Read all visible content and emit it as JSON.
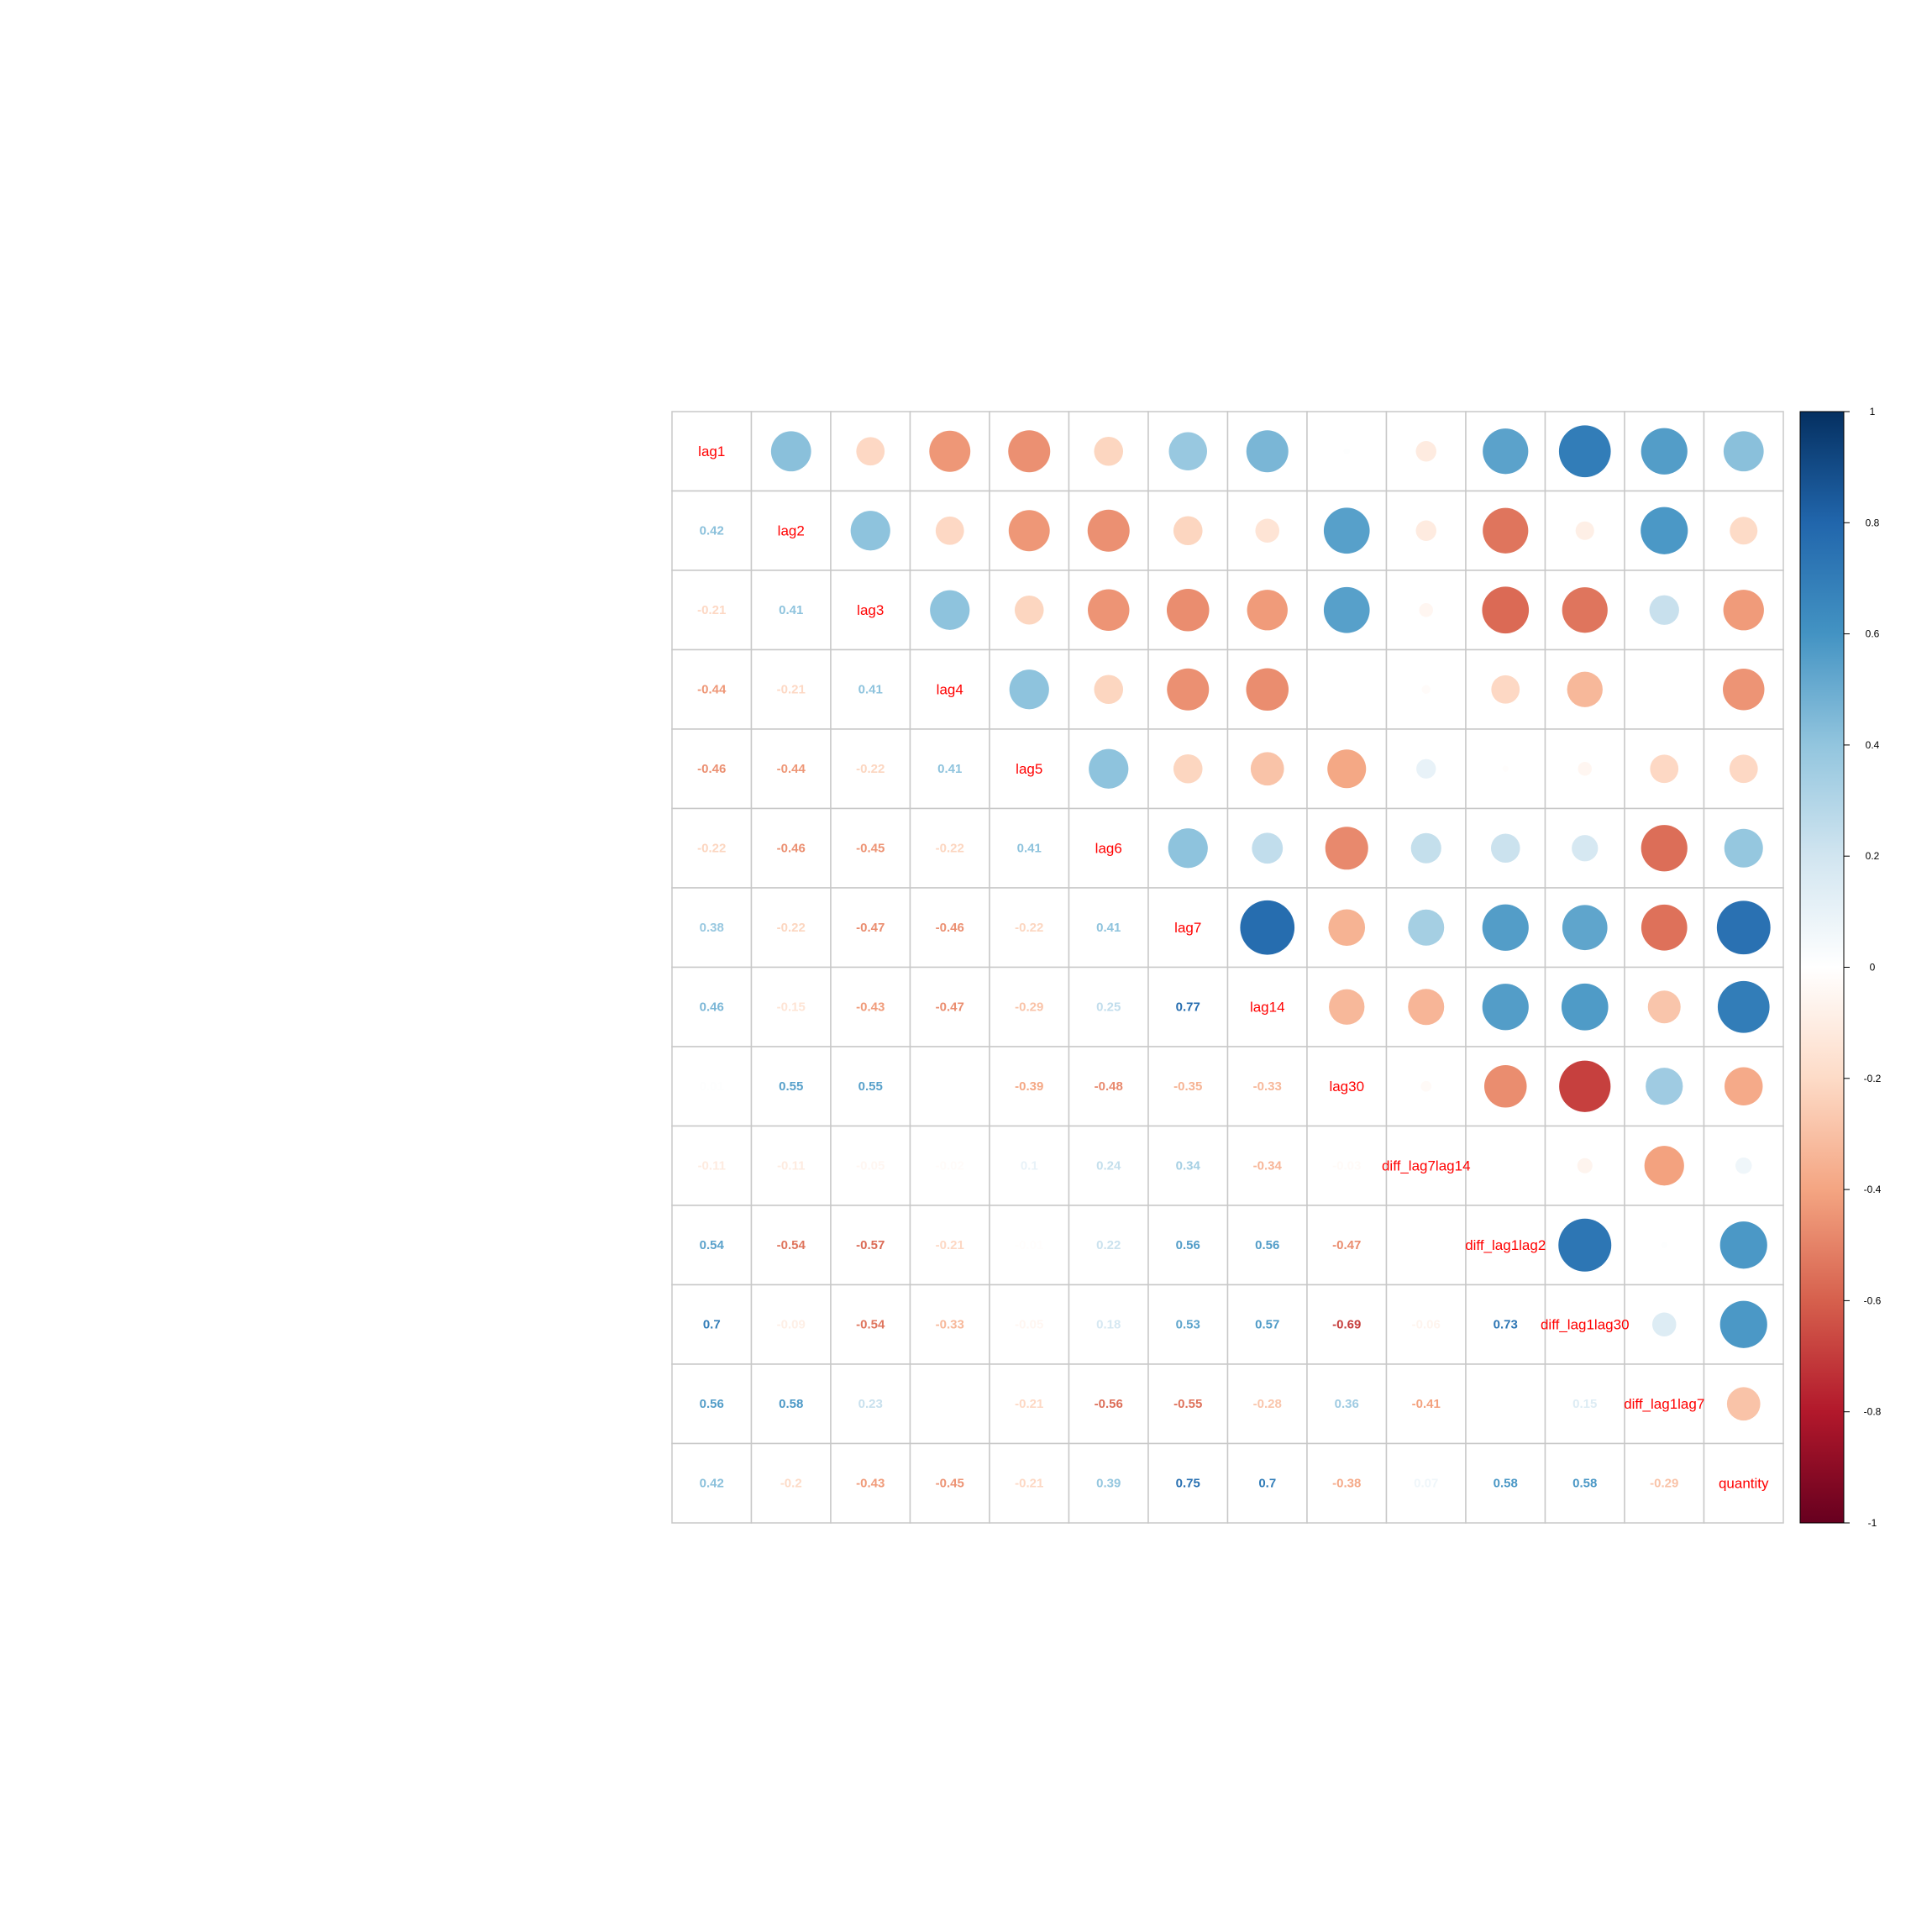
{
  "chart_data": {
    "type": "heatmap",
    "method": "circle-upper-number-lower",
    "variables": [
      "lag1",
      "lag2",
      "lag3",
      "lag4",
      "lag5",
      "lag6",
      "lag7",
      "lag14",
      "lag30",
      "diff_lag7lag14",
      "diff_lag1lag2",
      "diff_lag1lag30",
      "diff_lag1lag7",
      "quantity"
    ],
    "variable_label_color": "#ff0000",
    "matrix": [
      [
        1,
        0.42,
        -0.21,
        -0.44,
        -0.46,
        -0.22,
        0.38,
        0.46,
        0.01,
        -0.11,
        0.54,
        0.7,
        0.56,
        0.42
      ],
      [
        0.42,
        1,
        0.41,
        -0.21,
        -0.44,
        -0.46,
        -0.22,
        -0.15,
        0.55,
        -0.11,
        -0.54,
        -0.09,
        0.58,
        -0.2
      ],
      [
        -0.21,
        0.41,
        1,
        0.41,
        -0.22,
        -0.45,
        -0.47,
        -0.43,
        0.55,
        -0.05,
        -0.57,
        -0.54,
        0.23,
        -0.43
      ],
      [
        -0.44,
        -0.21,
        0.41,
        1,
        0.41,
        -0.22,
        -0.46,
        -0.47,
        0,
        -0.02,
        -0.21,
        -0.33,
        0,
        -0.45
      ],
      [
        -0.46,
        -0.44,
        -0.22,
        0.41,
        1,
        0.41,
        -0.22,
        -0.29,
        -0.39,
        0.1,
        -0.01,
        -0.05,
        -0.21,
        -0.21
      ],
      [
        -0.22,
        -0.46,
        -0.45,
        -0.22,
        0.41,
        1,
        0.41,
        0.25,
        -0.48,
        0.24,
        0.22,
        0.18,
        -0.56,
        0.39
      ],
      [
        0.38,
        -0.22,
        -0.47,
        -0.46,
        -0.22,
        0.41,
        1,
        0.77,
        -0.35,
        0.34,
        0.56,
        0.53,
        -0.55,
        0.75
      ],
      [
        0.46,
        -0.15,
        -0.43,
        -0.47,
        -0.29,
        0.25,
        0.77,
        1,
        -0.33,
        -0.34,
        0.56,
        0.57,
        -0.28,
        0.7
      ],
      [
        0.01,
        0.55,
        0.55,
        0,
        -0.39,
        -0.48,
        -0.35,
        -0.33,
        1,
        -0.03,
        -0.47,
        -0.69,
        0.36,
        -0.38
      ],
      [
        -0.11,
        -0.11,
        -0.05,
        -0.02,
        0.1,
        0.24,
        0.34,
        -0.34,
        -0.03,
        1,
        0,
        -0.06,
        -0.41,
        0.07
      ],
      [
        0.54,
        -0.54,
        -0.57,
        -0.21,
        -0.01,
        0.22,
        0.56,
        0.56,
        -0.47,
        0,
        1,
        0.73,
        0.01,
        0.58
      ],
      [
        0.7,
        -0.09,
        -0.54,
        -0.33,
        -0.05,
        0.18,
        0.53,
        0.57,
        -0.69,
        -0.06,
        0.73,
        1,
        0.15,
        0.58
      ],
      [
        0.56,
        0.58,
        0.23,
        0,
        -0.21,
        -0.56,
        -0.55,
        -0.28,
        0.36,
        -0.41,
        0.01,
        0.15,
        1,
        -0.29
      ],
      [
        0.42,
        -0.2,
        -0.43,
        -0.45,
        -0.21,
        0.39,
        0.75,
        0.7,
        -0.38,
        0.07,
        0.58,
        0.58,
        -0.29,
        1
      ]
    ],
    "hidden_labels": [
      [
        3,
        8
      ],
      [
        8,
        3
      ],
      [
        10,
        9
      ],
      [
        9,
        10
      ],
      [
        12,
        3
      ],
      [
        3,
        12
      ],
      [
        12,
        10
      ],
      [
        10,
        12
      ]
    ],
    "color_scale": {
      "range": [
        -1,
        1
      ],
      "stops": [
        "#67001f",
        "#b2182b",
        "#d6604d",
        "#f4a582",
        "#fddbc7",
        "#ffffff",
        "#d1e5f0",
        "#92c5de",
        "#4393c3",
        "#2166ac",
        "#053061"
      ],
      "ticks": [
        "-1",
        "-0.8",
        "-0.6",
        "-0.4",
        "-0.2",
        "0",
        "0.2",
        "0.4",
        "0.6",
        "0.8",
        "1"
      ],
      "legend_position": "right"
    },
    "grid": true
  }
}
